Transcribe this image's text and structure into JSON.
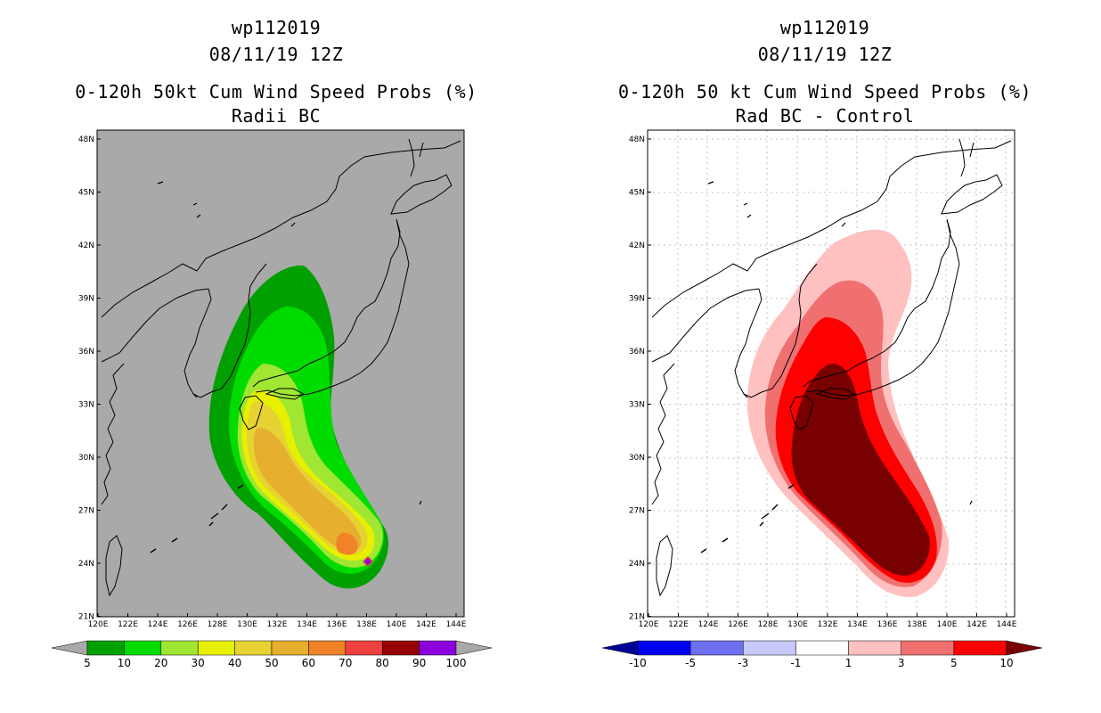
{
  "panels": [
    {
      "storm_id": "wp112019",
      "datetime": "08/11/19 12Z",
      "title": "0-120h 50kt Cum Wind Speed Probs (%)",
      "subtitle": "Radii BC",
      "background_color": "#a9a9a9",
      "colorbar": {
        "labels": [
          "5",
          "10",
          "20",
          "30",
          "40",
          "50",
          "60",
          "70",
          "80",
          "90",
          "100"
        ],
        "colors": [
          "#a9a9a9",
          "#00a000",
          "#00dc00",
          "#a0e632",
          "#e6f000",
          "#e6d232",
          "#e6af2d",
          "#f08228",
          "#f04040",
          "#960000",
          "#8c00dc",
          "#a9a9a9"
        ]
      }
    },
    {
      "storm_id": "wp112019",
      "datetime": "08/11/19 12Z",
      "title": "0-120h 50 kt Cum Wind Speed Probs (%)",
      "subtitle": "Rad BC - Control",
      "background_color": "#ffffff",
      "colorbar": {
        "labels": [
          "-10",
          "-5",
          "-3",
          "-1",
          "1",
          "3",
          "5",
          "10"
        ],
        "colors": [
          "#000096",
          "#0000f0",
          "#6e6ef0",
          "#c8c8ff",
          "#ffffff",
          "#ffc0c0",
          "#f07070",
          "#ff0000",
          "#780000"
        ]
      }
    }
  ],
  "axes": {
    "lat_labels": [
      "48N",
      "45N",
      "42N",
      "39N",
      "36N",
      "33N",
      "30N",
      "27N",
      "24N",
      "21N"
    ],
    "lon_labels": [
      "120E",
      "122E",
      "124E",
      "126E",
      "128E",
      "130E",
      "132E",
      "134E",
      "136E",
      "138E",
      "140E",
      "142E",
      "144E"
    ]
  }
}
